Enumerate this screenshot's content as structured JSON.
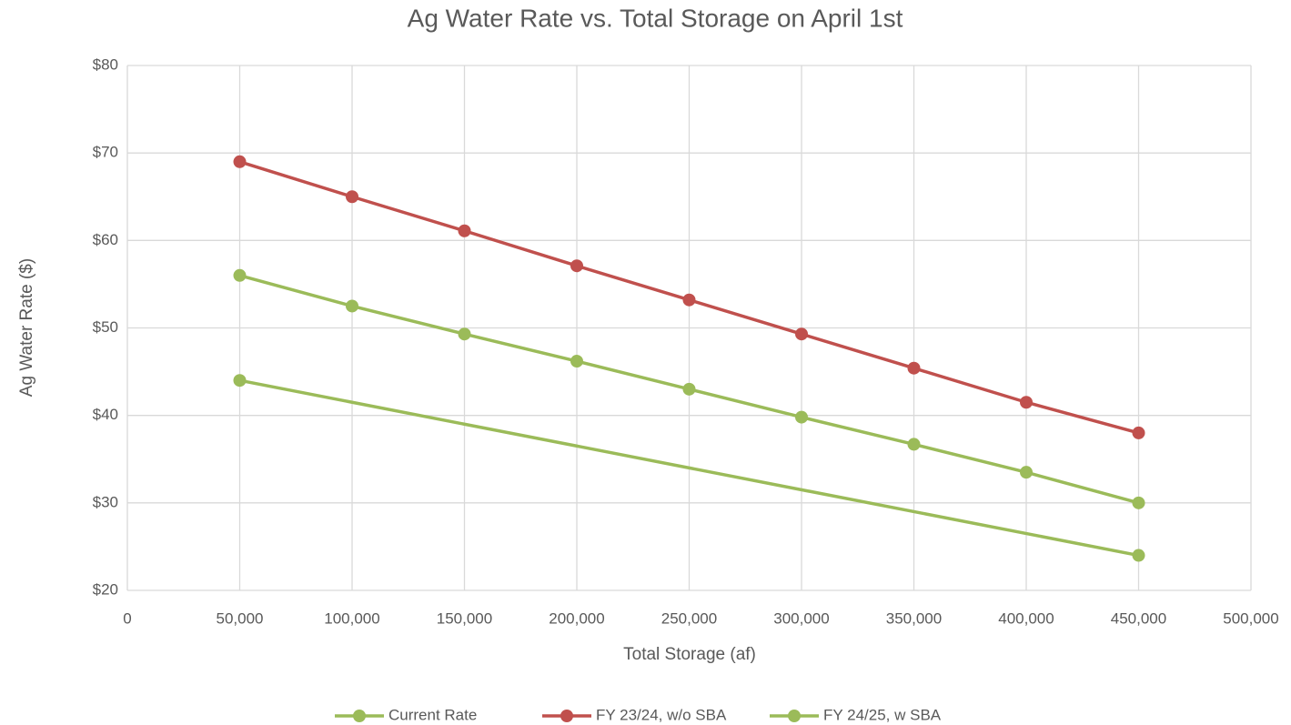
{
  "chart_data": {
    "type": "line",
    "title": "Ag Water Rate vs. Total Storage on April 1st",
    "x_label": "Total Storage (af)",
    "y_label": "Ag Water Rate ($)",
    "xlim": [
      0,
      500000
    ],
    "xticks": [
      0,
      {
        "value": 50000,
        "label": "50,000"
      },
      {
        "value": 100000,
        "label": "100,000"
      },
      {
        "value": 150000,
        "label": "150,000"
      },
      {
        "value": 200000,
        "label": "200,000"
      },
      {
        "value": 250000,
        "label": "250,000"
      },
      {
        "value": 300000,
        "label": "300,000"
      },
      {
        "value": 350000,
        "label": "350,000"
      },
      {
        "value": 400000,
        "label": "400,000"
      },
      {
        "value": 450000,
        "label": "450,000"
      },
      {
        "value": 500000,
        "label": "500,000"
      }
    ],
    "ylim": [
      20,
      80
    ],
    "yticks": [
      {
        "value": 20,
        "label": "$20"
      },
      {
        "value": 30,
        "label": "$30"
      },
      {
        "value": 40,
        "label": "$40"
      },
      {
        "value": 50,
        "label": "$50"
      },
      {
        "value": 60,
        "label": "$60"
      },
      {
        "value": 70,
        "label": "$70"
      },
      {
        "value": 80,
        "label": "$80"
      }
    ],
    "grid": true,
    "legend": "bottom",
    "series": [
      {
        "name": "Current Rate",
        "color": "#9bbb59",
        "x": [
          50000,
          450000
        ],
        "values": [
          44,
          24
        ]
      },
      {
        "name": "FY 23/24, w/o SBA",
        "color": "#c0504d",
        "x": [
          50000,
          100000,
          150000,
          200000,
          250000,
          300000,
          350000,
          400000,
          450000
        ],
        "values": [
          69,
          65,
          61.1,
          57.1,
          53.2,
          49.3,
          45.4,
          41.5,
          38
        ]
      },
      {
        "name": "FY 24/25, w SBA",
        "color": "#9bbb59",
        "x": [
          50000,
          100000,
          150000,
          200000,
          250000,
          300000,
          350000,
          400000,
          450000
        ],
        "values": [
          56,
          52.5,
          49.3,
          46.2,
          43,
          39.8,
          36.7,
          33.5,
          30
        ]
      }
    ]
  }
}
